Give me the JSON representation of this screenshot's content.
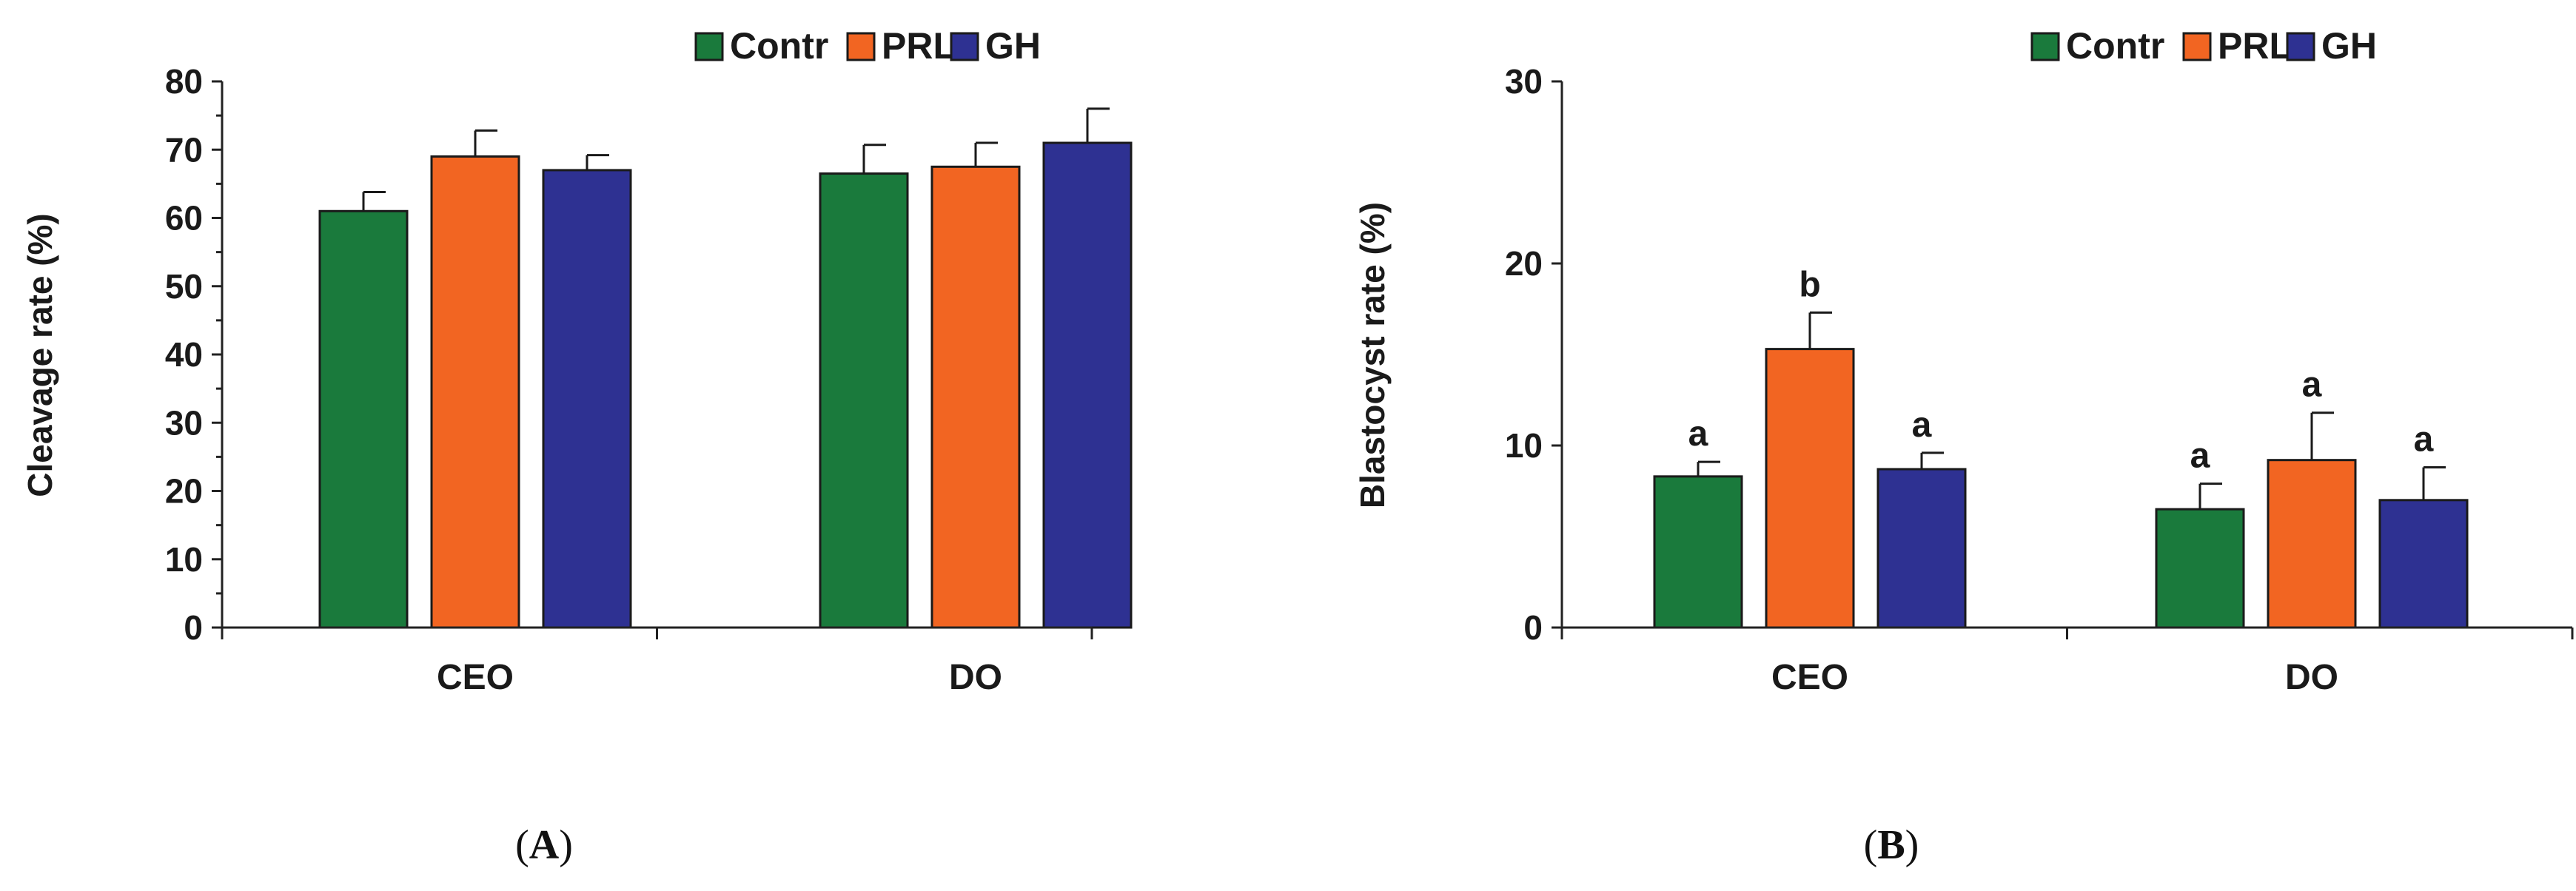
{
  "chart_data": [
    {
      "type": "bar",
      "panel_label": "A",
      "ylabel": "Cleavage rate (%)",
      "xlabel": "",
      "ylim": [
        0,
        80
      ],
      "yticks": [
        0,
        10,
        20,
        30,
        40,
        50,
        60,
        70,
        80
      ],
      "minor_ticks": true,
      "categories": [
        "CEO",
        "DO"
      ],
      "legend_position": "top-right",
      "series": [
        {
          "name": "Contr",
          "color": "#1a7a3c",
          "values": [
            61,
            66.5
          ],
          "errors": [
            2.8,
            4.2
          ],
          "labels": [
            "",
            ""
          ]
        },
        {
          "name": "PRL",
          "color": "#f26522",
          "values": [
            69,
            67.5
          ],
          "errors": [
            3.8,
            3.5
          ],
          "labels": [
            "",
            ""
          ]
        },
        {
          "name": "GH",
          "color": "#2e3192",
          "values": [
            67,
            71
          ],
          "errors": [
            2.2,
            5.0
          ],
          "labels": [
            "",
            ""
          ]
        }
      ]
    },
    {
      "type": "bar",
      "panel_label": "B",
      "ylabel": "Blastocyst rate (%)",
      "xlabel": "",
      "ylim": [
        0,
        30
      ],
      "yticks": [
        0,
        10,
        20,
        30
      ],
      "minor_ticks": false,
      "categories": [
        "CEO",
        "DO"
      ],
      "legend_position": "top-right",
      "series": [
        {
          "name": "Contr",
          "color": "#1a7a3c",
          "values": [
            8.3,
            6.5
          ],
          "errors": [
            0.8,
            1.4
          ],
          "labels": [
            "a",
            "a"
          ]
        },
        {
          "name": "PRL",
          "color": "#f26522",
          "values": [
            15.3,
            9.2
          ],
          "errors": [
            2.0,
            2.6
          ],
          "labels": [
            "b",
            "a"
          ]
        },
        {
          "name": "GH",
          "color": "#2e3192",
          "values": [
            8.7,
            7.0
          ],
          "errors": [
            0.9,
            1.8
          ],
          "labels": [
            "a",
            "a"
          ]
        }
      ]
    }
  ]
}
